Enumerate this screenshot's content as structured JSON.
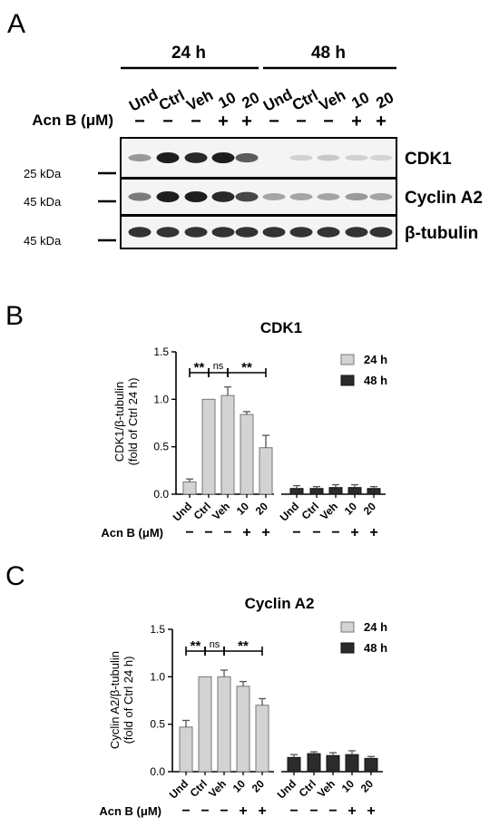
{
  "panel_letters": [
    "A",
    "B",
    "C"
  ],
  "western_blot": {
    "timepoints": [
      "24 h",
      "48 h"
    ],
    "lanes": [
      "Und",
      "Ctrl",
      "Veh",
      "10",
      "20"
    ],
    "treatment_label": "Acn B (μM)",
    "treatment_signs": [
      "−",
      "−",
      "−",
      "+",
      "+"
    ],
    "blots": [
      {
        "protein": "CDK1",
        "marker": "25 kDa",
        "intensity_24h": [
          0.35,
          0.95,
          0.9,
          0.95,
          0.65
        ],
        "intensity_48h": [
          0.0,
          0.08,
          0.12,
          0.08,
          0.06
        ]
      },
      {
        "protein": "Cyclin A2",
        "marker": "45 kDa",
        "intensity_24h": [
          0.5,
          0.95,
          0.95,
          0.9,
          0.75
        ],
        "intensity_48h": [
          0.3,
          0.3,
          0.3,
          0.35,
          0.3
        ]
      },
      {
        "protein": "β-tubulin",
        "marker": "45 kDa",
        "intensity_24h": [
          0.85,
          0.85,
          0.85,
          0.85,
          0.85
        ],
        "intensity_48h": [
          0.85,
          0.85,
          0.85,
          0.85,
          0.85
        ]
      }
    ]
  },
  "chart_data": [
    {
      "type": "bar",
      "title": "CDK1",
      "ylabel_lines": [
        "CDK1/β-tubulin",
        "(fold of Ctrl 24 h)"
      ],
      "ylim": [
        0,
        1.5
      ],
      "yticks": [
        "0.0",
        "0.5",
        "1.0",
        "1.5"
      ],
      "categories": [
        "Und",
        "Ctrl",
        "Veh",
        "10",
        "20"
      ],
      "treatment_label": "Acn B (μM)",
      "treatment_signs": [
        "−",
        "−",
        "−",
        "+",
        "+"
      ],
      "series": [
        {
          "name": "24 h",
          "color": "#d3d3d3",
          "values": [
            0.13,
            1.0,
            1.04,
            0.84,
            0.49
          ],
          "errors": [
            0.03,
            0.0,
            0.09,
            0.03,
            0.13
          ]
        },
        {
          "name": "48 h",
          "color": "#2b2b2b",
          "values": [
            0.06,
            0.06,
            0.07,
            0.07,
            0.06
          ],
          "errors": [
            0.03,
            0.02,
            0.03,
            0.03,
            0.02
          ]
        }
      ],
      "significance": [
        {
          "from": 0,
          "to": 1,
          "label": "**"
        },
        {
          "from": 1,
          "to": 2,
          "label": "ns"
        },
        {
          "from": 2,
          "to": 4,
          "label": "**"
        }
      ],
      "legend_position": "top-right"
    },
    {
      "type": "bar",
      "title": "Cyclin A2",
      "ylabel_lines": [
        "Cyclin A2/β-tubulin",
        "(fold of Ctrl 24 h)"
      ],
      "ylim": [
        0,
        1.5
      ],
      "yticks": [
        "0.0",
        "0.5",
        "1.0",
        "1.5"
      ],
      "categories": [
        "Und",
        "Ctrl",
        "Veh",
        "10",
        "20"
      ],
      "treatment_label": "Acn B (μM)",
      "treatment_signs": [
        "−",
        "−",
        "−",
        "+",
        "+"
      ],
      "series": [
        {
          "name": "24 h",
          "color": "#d3d3d3",
          "values": [
            0.47,
            1.0,
            1.0,
            0.9,
            0.7
          ],
          "errors": [
            0.07,
            0.0,
            0.07,
            0.05,
            0.07
          ]
        },
        {
          "name": "48 h",
          "color": "#2b2b2b",
          "values": [
            0.15,
            0.19,
            0.17,
            0.18,
            0.14
          ],
          "errors": [
            0.03,
            0.02,
            0.03,
            0.04,
            0.02
          ]
        }
      ],
      "significance": [
        {
          "from": 0,
          "to": 1,
          "label": "**"
        },
        {
          "from": 1,
          "to": 2,
          "label": "ns"
        },
        {
          "from": 2,
          "to": 4,
          "label": "**"
        }
      ],
      "legend_position": "top-right"
    }
  ]
}
